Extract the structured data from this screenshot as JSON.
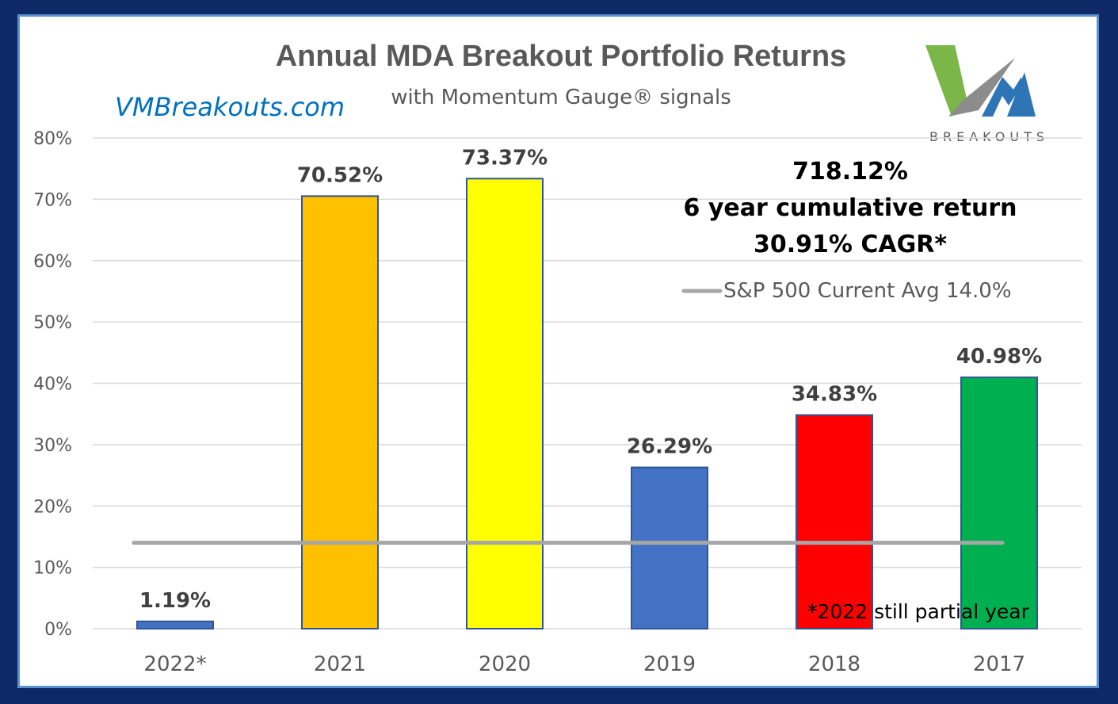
{
  "chart_data": {
    "type": "bar",
    "title": "Annual MDA Breakout Portfolio Returns",
    "subtitle": "with Momentum Gauge® signals",
    "categories": [
      "2022*",
      "2021",
      "2020",
      "2019",
      "2018",
      "2017"
    ],
    "values": [
      1.19,
      70.52,
      73.37,
      26.29,
      34.83,
      40.98
    ],
    "data_labels": [
      "1.19%",
      "70.52%",
      "73.37%",
      "26.29%",
      "34.83%",
      "40.98%"
    ],
    "bar_colors": [
      "#4472c4",
      "#ffc000",
      "#ffff00",
      "#4472c4",
      "#ff0000",
      "#00b050"
    ],
    "bar_edge_color": "#2f5597",
    "ylim": [
      0,
      80
    ],
    "yticks": [
      0,
      10,
      20,
      30,
      40,
      50,
      60,
      70,
      80
    ],
    "ytick_labels": [
      "0%",
      "10%",
      "20%",
      "30%",
      "40%",
      "50%",
      "60%",
      "70%",
      "80%"
    ],
    "grid": true,
    "reference_line": {
      "name": "S&P 500 Current Avg 14.0%",
      "value": 14.0,
      "color": "#a6a6a6"
    },
    "legend_position": "top-right"
  },
  "site": "VMBreakouts.com",
  "logo": {
    "text": "BREAKOUTS",
    "icon": "vm-logo-icon",
    "colors": [
      "#7ab648",
      "#8c8c8c",
      "#2e75b6"
    ]
  },
  "annotation": {
    "line1": "718.12%",
    "line2": "6 year cumulative return",
    "line3": "30.91% CAGR*"
  },
  "footnote": "*2022 still partial year",
  "colors": {
    "frame": "#0d2a66",
    "panel_border": "#5a8fd0",
    "grid": "#d9d9d9"
  }
}
